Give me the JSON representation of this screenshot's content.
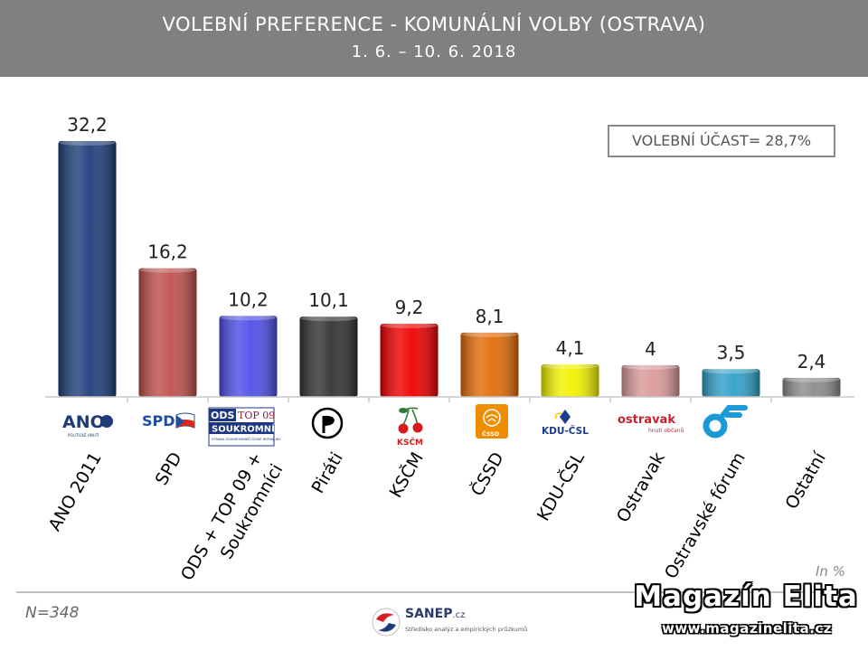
{
  "header": {
    "title": "VOLEBNÍ PREFERENCE - KOMUNÁLNÍ VOLBY (OSTRAVA)",
    "subtitle": "1. 6. – 10. 6. 2018"
  },
  "turnout_label": "VOLEBNÍ ÚČAST= 28,7%",
  "unit_note": "In %",
  "sample_note": "N=348",
  "footer": {
    "sanep_name": "SANEP",
    "sanep_domain": ".cz",
    "sanep_tagline": "Středisko analýz a empirických průzkumů",
    "watermark_title": "Magazín Elita",
    "watermark_url": "www.magazinelita.cz"
  },
  "logos": {
    "ano": {
      "icon": "ano-logo",
      "text": "ANO",
      "sub": "POLITICKÉ HNUTÍ"
    },
    "spd": {
      "icon": "spd-logo",
      "text": "SPD"
    },
    "ods": {
      "icon": "ods-top09-logo",
      "text1": "ODS",
      "text2": "TOP 09",
      "text3": "SOUKROMNÍCI",
      "sub": "STRANA SOUKROMNÍKŮ ČESKÉ REPUBLIKY"
    },
    "pirati": {
      "icon": "pirate-flag-logo"
    },
    "kscm": {
      "icon": "cherries-logo",
      "text": "KSČM"
    },
    "cssd": {
      "icon": "rose-logo",
      "text": "ČSSD"
    },
    "kdu": {
      "icon": "kdu-csl-logo",
      "text": "KDU-ČSL"
    },
    "ostravak": {
      "icon": "ostravak-logo",
      "text": "ostravak",
      "sub": "hnutí občanů"
    },
    "of": {
      "icon": "ostravske-forum-logo"
    }
  },
  "chart_data": {
    "type": "bar",
    "categories": [
      "ANO 2011",
      "SPD",
      "ODS + TOP 09 + Soukromníci",
      "Piráti",
      "KSČM",
      "ČSSD",
      "KDU-ČSL",
      "Ostravak",
      "Ostravské fórum",
      "Ostatní"
    ],
    "values": [
      32.2,
      16.2,
      10.2,
      10.1,
      9.2,
      8.1,
      4.1,
      4,
      3.5,
      2.4
    ],
    "data_labels": [
      "32,2",
      "16,2",
      "10,2",
      "10,1",
      "9,2",
      "8,1",
      "4,1",
      "4",
      "3,5",
      "2,4"
    ],
    "tick_labels": [
      [
        "ANO 2011"
      ],
      [
        "SPD"
      ],
      [
        "ODS + TOP 09 +",
        "Soukromníci"
      ],
      [
        "Piráti"
      ],
      [
        "KSČM"
      ],
      [
        "ČSSD"
      ],
      [
        "KDU-ČSL"
      ],
      [
        "Ostravak"
      ],
      [
        "Ostravské fórum"
      ],
      [
        "Ostatní"
      ]
    ],
    "colors": [
      "#1f3f7a",
      "#c0504d",
      "#4f4fe8",
      "#333333",
      "#ee0000",
      "#e36c09",
      "#f2f200",
      "#d99a9a",
      "#31a1c9",
      "#8c8c8c"
    ],
    "ylim": [
      0,
      33
    ],
    "grid": false,
    "legend": "none"
  }
}
